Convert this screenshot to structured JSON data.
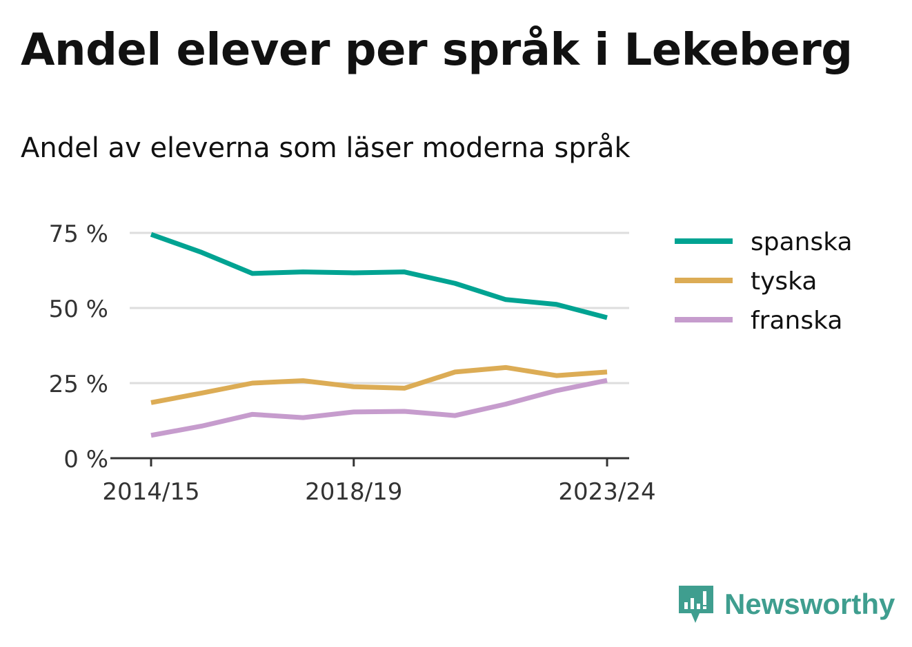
{
  "title": "Andel elever per språk i Lekeberg",
  "subtitle": "Andel av eleverna som läser moderna språk",
  "brand": "Newsworthy",
  "chart_data": {
    "type": "line",
    "x": [
      "2014/15",
      "2015/16",
      "2016/17",
      "2017/18",
      "2018/19",
      "2019/20",
      "2020/21",
      "2021/22",
      "2022/23",
      "2023/24"
    ],
    "x_ticks": [
      "2014/15",
      "2018/19",
      "2023/24"
    ],
    "y_ticks": [
      "0 %",
      "25 %",
      "50 %",
      "75 %"
    ],
    "ylim": [
      0,
      75
    ],
    "grid": true,
    "legend_position": "right",
    "series": [
      {
        "name": "spanska",
        "color": "#00a392",
        "values": [
          74.5,
          68.5,
          61.5,
          62,
          61.7,
          62,
          58.2,
          52.8,
          51.2,
          46.8
        ]
      },
      {
        "name": "tyska",
        "color": "#dcac55",
        "values": [
          18.5,
          21.7,
          25,
          25.8,
          23.8,
          23.3,
          28.7,
          30.2,
          27.5,
          28.7
        ]
      },
      {
        "name": "franska",
        "color": "#c69ccd",
        "values": [
          7.6,
          10.7,
          14.6,
          13.5,
          15.4,
          15.6,
          14.2,
          18,
          22.5,
          25.9
        ]
      }
    ]
  }
}
